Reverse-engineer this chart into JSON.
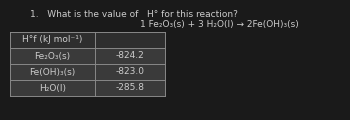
{
  "title_line1": "1.   What is the value of   H° for this reaction?",
  "title_line2": "1 Fe₂O₃(s) + 3 H₂O(l) → 2Fe(OH)₃(s)",
  "col_header": "H°f (kJ mol⁻¹)",
  "rows": [
    [
      "Fe₂O₃(s)",
      "-824.2"
    ],
    [
      "Fe(OH)₃(s)",
      "-823.0"
    ],
    [
      "H₂O(l)",
      "-285.8"
    ]
  ],
  "bg_color": "#1a1a1a",
  "table_cell_color": "#3a3a3a",
  "table_header_color": "#2e2e2e",
  "border_color": "#888888",
  "text_color": "#cccccc",
  "font_size": 6.5,
  "title_font_size": 6.5
}
